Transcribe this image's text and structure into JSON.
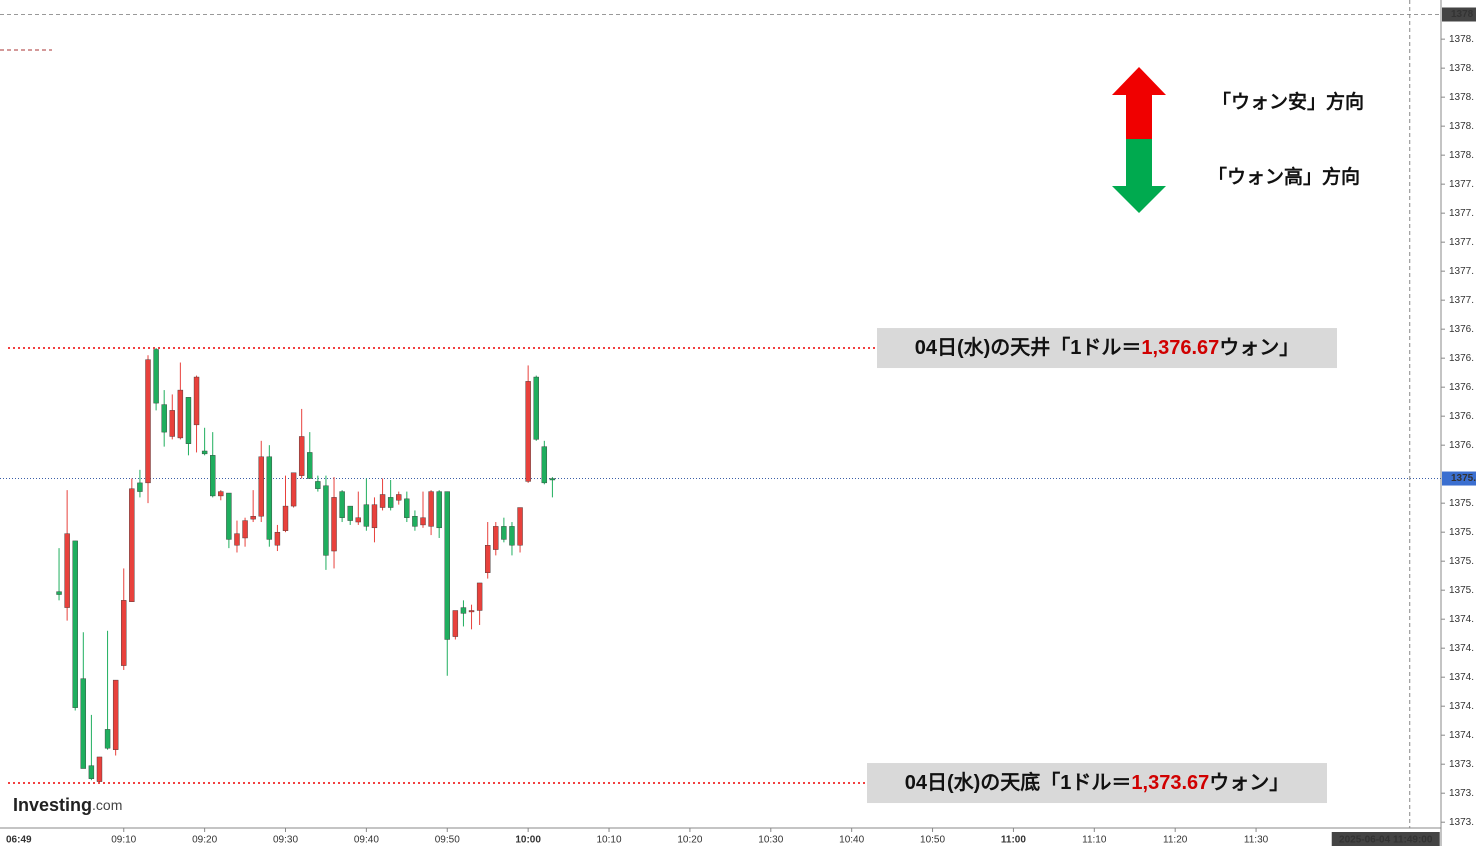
{
  "chart_data": {
    "type": "candlestick",
    "up_color": "#e8413c",
    "down_color": "#1fae5e",
    "ylim": [
      1373.36,
      1379.07
    ],
    "xlim": [
      534.7,
      712
    ],
    "yticks": [
      {
        "value": 1378.8,
        "label": "1378."
      },
      {
        "value": 1378.6,
        "label": "1378."
      },
      {
        "value": 1378.4,
        "label": "1378."
      },
      {
        "value": 1378.2,
        "label": "1378."
      },
      {
        "value": 1378.0,
        "label": "1378."
      },
      {
        "value": 1377.8,
        "label": "1377."
      },
      {
        "value": 1377.6,
        "label": "1377."
      },
      {
        "value": 1377.4,
        "label": "1377."
      },
      {
        "value": 1377.2,
        "label": "1377."
      },
      {
        "value": 1377.0,
        "label": "1377."
      },
      {
        "value": 1376.8,
        "label": "1376."
      },
      {
        "value": 1376.6,
        "label": "1376."
      },
      {
        "value": 1376.4,
        "label": "1376."
      },
      {
        "value": 1376.2,
        "label": "1376."
      },
      {
        "value": 1376.0,
        "label": "1376."
      },
      {
        "value": 1375.6,
        "label": "1375."
      },
      {
        "value": 1375.4,
        "label": "1375."
      },
      {
        "value": 1375.2,
        "label": "1375."
      },
      {
        "value": 1375.0,
        "label": "1375."
      },
      {
        "value": 1374.8,
        "label": "1374."
      },
      {
        "value": 1374.6,
        "label": "1374."
      },
      {
        "value": 1374.4,
        "label": "1374."
      },
      {
        "value": 1374.2,
        "label": "1374."
      },
      {
        "value": 1374.0,
        "label": "1374."
      },
      {
        "value": 1373.8,
        "label": "1373."
      },
      {
        "value": 1373.6,
        "label": "1373."
      },
      {
        "value": 1373.4,
        "label": "1373."
      }
    ],
    "session_open_label": "06:49",
    "xticks": [
      "09:10",
      "09:20",
      "09:30",
      "09:40",
      "09:50",
      "10:00",
      "10:10",
      "10:20",
      "10:30",
      "10:40",
      "10:50",
      "11:00",
      "11:10",
      "11:20",
      "11:30"
    ],
    "last_price": {
      "value": 1375.77,
      "label": "1375."
    },
    "high_marker": {
      "value": 1378.97,
      "label": "1378"
    },
    "cursor": "2025-06-04 11:49:00",
    "levels": [
      {
        "value": 1376.67,
        "prefix": "04日(水)の天井「1ドル＝",
        "label": "1,376.67",
        "suffix": "ウォン」"
      },
      {
        "value": 1373.67,
        "prefix": "04日(水)の天底「1ドル＝",
        "label": "1,373.67",
        "suffix": "ウォン」"
      }
    ],
    "legend": {
      "up": "「ウォン安」方向",
      "down": "「ウォン高」方向"
    },
    "logo": {
      "main": "Investing",
      "sub": ".com"
    },
    "candles": [
      {
        "t": "09:02",
        "o": 1374.99,
        "h": 1375.29,
        "l": 1374.93,
        "c": 1374.97
      },
      {
        "t": "09:03",
        "o": 1374.88,
        "h": 1375.69,
        "l": 1374.79,
        "c": 1375.39
      },
      {
        "t": "09:04",
        "o": 1375.34,
        "h": 1375.34,
        "l": 1374.17,
        "c": 1374.19
      },
      {
        "t": "09:05",
        "o": 1374.39,
        "h": 1374.71,
        "l": 1373.77,
        "c": 1373.77
      },
      {
        "t": "09:06",
        "o": 1373.79,
        "h": 1374.14,
        "l": 1373.69,
        "c": 1373.7
      },
      {
        "t": "09:07",
        "o": 1373.68,
        "h": 1373.85,
        "l": 1373.67,
        "c": 1373.85
      },
      {
        "t": "09:08",
        "o": 1374.04,
        "h": 1374.72,
        "l": 1373.9,
        "c": 1373.91
      },
      {
        "t": "09:09",
        "o": 1373.9,
        "h": 1374.38,
        "l": 1373.86,
        "c": 1374.38
      },
      {
        "t": "09:10",
        "o": 1374.48,
        "h": 1375.15,
        "l": 1374.45,
        "c": 1374.93
      },
      {
        "t": "09:11",
        "o": 1374.92,
        "h": 1375.77,
        "l": 1374.92,
        "c": 1375.7
      },
      {
        "t": "09:12",
        "o": 1375.74,
        "h": 1375.83,
        "l": 1375.64,
        "c": 1375.68
      },
      {
        "t": "09:13",
        "o": 1375.74,
        "h": 1376.62,
        "l": 1375.6,
        "c": 1376.59
      },
      {
        "t": "09:14",
        "o": 1376.66,
        "h": 1376.67,
        "l": 1376.24,
        "c": 1376.29
      },
      {
        "t": "09:15",
        "o": 1376.28,
        "h": 1376.38,
        "l": 1375.99,
        "c": 1376.09
      },
      {
        "t": "09:16",
        "o": 1376.06,
        "h": 1376.35,
        "l": 1376.04,
        "c": 1376.24
      },
      {
        "t": "09:17",
        "o": 1376.05,
        "h": 1376.57,
        "l": 1376.04,
        "c": 1376.38
      },
      {
        "t": "09:18",
        "o": 1376.33,
        "h": 1376.33,
        "l": 1375.93,
        "c": 1376.01
      },
      {
        "t": "09:19",
        "o": 1376.14,
        "h": 1376.48,
        "l": 1375.95,
        "c": 1376.47
      },
      {
        "t": "09:20",
        "o": 1375.96,
        "h": 1376.12,
        "l": 1375.93,
        "c": 1375.94
      },
      {
        "t": "09:21",
        "o": 1375.93,
        "h": 1376.09,
        "l": 1375.64,
        "c": 1375.65
      },
      {
        "t": "09:22",
        "o": 1375.65,
        "h": 1375.69,
        "l": 1375.62,
        "c": 1375.68
      },
      {
        "t": "09:23",
        "o": 1375.67,
        "h": 1375.67,
        "l": 1375.29,
        "c": 1375.35
      },
      {
        "t": "09:24",
        "o": 1375.31,
        "h": 1375.48,
        "l": 1375.26,
        "c": 1375.39
      },
      {
        "t": "09:25",
        "o": 1375.36,
        "h": 1375.5,
        "l": 1375.3,
        "c": 1375.48
      },
      {
        "t": "09:26",
        "o": 1375.49,
        "h": 1375.69,
        "l": 1375.47,
        "c": 1375.51
      },
      {
        "t": "09:27",
        "o": 1375.51,
        "h": 1376.03,
        "l": 1375.47,
        "c": 1375.92
      },
      {
        "t": "09:28",
        "o": 1375.92,
        "h": 1376.0,
        "l": 1375.3,
        "c": 1375.35
      },
      {
        "t": "09:29",
        "o": 1375.31,
        "h": 1375.45,
        "l": 1375.27,
        "c": 1375.4
      },
      {
        "t": "09:30",
        "o": 1375.41,
        "h": 1375.79,
        "l": 1375.4,
        "c": 1375.58
      },
      {
        "t": "09:31",
        "o": 1375.58,
        "h": 1375.81,
        "l": 1375.57,
        "c": 1375.81
      },
      {
        "t": "09:32",
        "o": 1375.79,
        "h": 1376.25,
        "l": 1375.77,
        "c": 1376.06
      },
      {
        "t": "09:33",
        "o": 1375.95,
        "h": 1376.09,
        "l": 1375.77,
        "c": 1375.77
      },
      {
        "t": "09:34",
        "o": 1375.75,
        "h": 1375.79,
        "l": 1375.68,
        "c": 1375.7
      },
      {
        "t": "09:35",
        "o": 1375.72,
        "h": 1375.79,
        "l": 1375.14,
        "c": 1375.24
      },
      {
        "t": "09:36",
        "o": 1375.27,
        "h": 1375.78,
        "l": 1375.15,
        "c": 1375.64
      },
      {
        "t": "09:37",
        "o": 1375.68,
        "h": 1375.69,
        "l": 1375.47,
        "c": 1375.5
      },
      {
        "t": "09:38",
        "o": 1375.58,
        "h": 1375.58,
        "l": 1375.45,
        "c": 1375.48
      },
      {
        "t": "09:39",
        "o": 1375.47,
        "h": 1375.68,
        "l": 1375.45,
        "c": 1375.5
      },
      {
        "t": "09:40",
        "o": 1375.59,
        "h": 1375.77,
        "l": 1375.41,
        "c": 1375.44
      },
      {
        "t": "09:41",
        "o": 1375.43,
        "h": 1375.64,
        "l": 1375.33,
        "c": 1375.59
      },
      {
        "t": "09:42",
        "o": 1375.57,
        "h": 1375.77,
        "l": 1375.55,
        "c": 1375.66
      },
      {
        "t": "09:43",
        "o": 1375.64,
        "h": 1375.76,
        "l": 1375.55,
        "c": 1375.57
      },
      {
        "t": "09:44",
        "o": 1375.62,
        "h": 1375.68,
        "l": 1375.59,
        "c": 1375.66
      },
      {
        "t": "09:45",
        "o": 1375.63,
        "h": 1375.68,
        "l": 1375.47,
        "c": 1375.5
      },
      {
        "t": "09:46",
        "o": 1375.51,
        "h": 1375.55,
        "l": 1375.41,
        "c": 1375.44
      },
      {
        "t": "09:47",
        "o": 1375.45,
        "h": 1375.68,
        "l": 1375.43,
        "c": 1375.5
      },
      {
        "t": "09:48",
        "o": 1375.44,
        "h": 1375.69,
        "l": 1375.38,
        "c": 1375.68
      },
      {
        "t": "09:49",
        "o": 1375.68,
        "h": 1375.69,
        "l": 1375.36,
        "c": 1375.43
      },
      {
        "t": "09:50",
        "o": 1375.68,
        "h": 1375.68,
        "l": 1374.41,
        "c": 1374.66
      },
      {
        "t": "09:51",
        "o": 1374.68,
        "h": 1374.86,
        "l": 1374.66,
        "c": 1374.86
      },
      {
        "t": "09:52",
        "o": 1374.88,
        "h": 1374.93,
        "l": 1374.75,
        "c": 1374.84
      },
      {
        "t": "09:53",
        "o": 1374.85,
        "h": 1374.9,
        "l": 1374.73,
        "c": 1374.86
      },
      {
        "t": "09:54",
        "o": 1374.86,
        "h": 1375.05,
        "l": 1374.76,
        "c": 1375.05
      },
      {
        "t": "09:55",
        "o": 1375.12,
        "h": 1375.47,
        "l": 1375.08,
        "c": 1375.31
      },
      {
        "t": "09:56",
        "o": 1375.28,
        "h": 1375.47,
        "l": 1375.24,
        "c": 1375.44
      },
      {
        "t": "09:57",
        "o": 1375.44,
        "h": 1375.5,
        "l": 1375.33,
        "c": 1375.35
      },
      {
        "t": "09:58",
        "o": 1375.44,
        "h": 1375.47,
        "l": 1375.24,
        "c": 1375.31
      },
      {
        "t": "09:59",
        "o": 1375.31,
        "h": 1375.57,
        "l": 1375.26,
        "c": 1375.57
      },
      {
        "t": "10:00",
        "o": 1375.75,
        "h": 1376.55,
        "l": 1375.74,
        "c": 1376.44
      },
      {
        "t": "10:01",
        "o": 1376.47,
        "h": 1376.48,
        "l": 1376.03,
        "c": 1376.04
      },
      {
        "t": "10:02",
        "o": 1375.99,
        "h": 1376.03,
        "l": 1375.73,
        "c": 1375.74
      },
      {
        "t": "10:03",
        "o": 1375.77,
        "h": 1375.78,
        "l": 1375.64,
        "c": 1375.76
      }
    ]
  }
}
